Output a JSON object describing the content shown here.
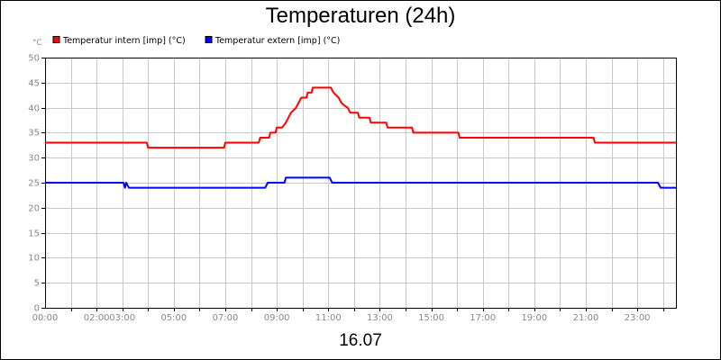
{
  "chart_data": {
    "type": "line",
    "title": "Temperaturen (24h)",
    "date_label": "16.07",
    "y_unit": "°C",
    "ylim": [
      0,
      50
    ],
    "yticks": [
      0,
      5,
      10,
      15,
      20,
      25,
      30,
      35,
      40,
      45,
      50
    ],
    "xlim": [
      0,
      24.5
    ],
    "xtick_labels": [
      {
        "h": 0,
        "label": "00:00"
      },
      {
        "h": 2,
        "label": "02:00"
      },
      {
        "h": 3,
        "label": "03:00"
      },
      {
        "h": 5,
        "label": "05:00"
      },
      {
        "h": 7,
        "label": "07:00"
      },
      {
        "h": 9,
        "label": "09:00"
      },
      {
        "h": 11,
        "label": "11:00"
      },
      {
        "h": 13,
        "label": "13:00"
      },
      {
        "h": 15,
        "label": "15:00"
      },
      {
        "h": 17,
        "label": "17:00"
      },
      {
        "h": 19,
        "label": "19:00"
      },
      {
        "h": 21,
        "label": "21:00"
      },
      {
        "h": 23,
        "label": "23:00"
      }
    ],
    "grid": true,
    "legend_position": "top-left",
    "series": [
      {
        "name": "Temperatur intern [imp] (°C)",
        "color": "#ff0000",
        "points": [
          [
            0,
            33
          ],
          [
            3.95,
            33
          ],
          [
            4.0,
            32
          ],
          [
            6.95,
            32
          ],
          [
            7.0,
            33
          ],
          [
            8.3,
            33
          ],
          [
            8.35,
            34
          ],
          [
            8.7,
            34
          ],
          [
            8.75,
            35
          ],
          [
            8.95,
            35
          ],
          [
            9.0,
            36
          ],
          [
            9.2,
            36
          ],
          [
            9.35,
            37
          ],
          [
            9.45,
            38
          ],
          [
            9.55,
            39
          ],
          [
            9.65,
            39.5
          ],
          [
            9.75,
            40
          ],
          [
            9.85,
            41
          ],
          [
            9.95,
            42
          ],
          [
            10.15,
            42
          ],
          [
            10.2,
            43
          ],
          [
            10.35,
            43
          ],
          [
            10.4,
            44
          ],
          [
            11.1,
            44
          ],
          [
            11.2,
            43
          ],
          [
            11.3,
            42.5
          ],
          [
            11.4,
            42
          ],
          [
            11.5,
            41
          ],
          [
            11.6,
            40.5
          ],
          [
            11.75,
            40
          ],
          [
            11.85,
            39
          ],
          [
            12.15,
            39
          ],
          [
            12.2,
            38
          ],
          [
            12.6,
            38
          ],
          [
            12.65,
            37
          ],
          [
            13.25,
            37
          ],
          [
            13.3,
            36
          ],
          [
            14.25,
            36
          ],
          [
            14.3,
            35
          ],
          [
            16.05,
            35
          ],
          [
            16.1,
            34
          ],
          [
            21.3,
            34
          ],
          [
            21.35,
            33
          ],
          [
            24.5,
            33
          ]
        ]
      },
      {
        "name": "Temperatur extern [imp] (°C)",
        "color": "#0000ff",
        "points": [
          [
            0,
            25
          ],
          [
            3.05,
            25
          ],
          [
            3.1,
            24
          ],
          [
            3.15,
            25
          ],
          [
            3.25,
            24
          ],
          [
            8.55,
            24
          ],
          [
            8.65,
            25
          ],
          [
            9.3,
            25
          ],
          [
            9.35,
            26
          ],
          [
            11.05,
            26
          ],
          [
            11.15,
            25
          ],
          [
            23.8,
            25
          ],
          [
            23.9,
            24
          ],
          [
            24.5,
            24
          ]
        ]
      }
    ]
  }
}
